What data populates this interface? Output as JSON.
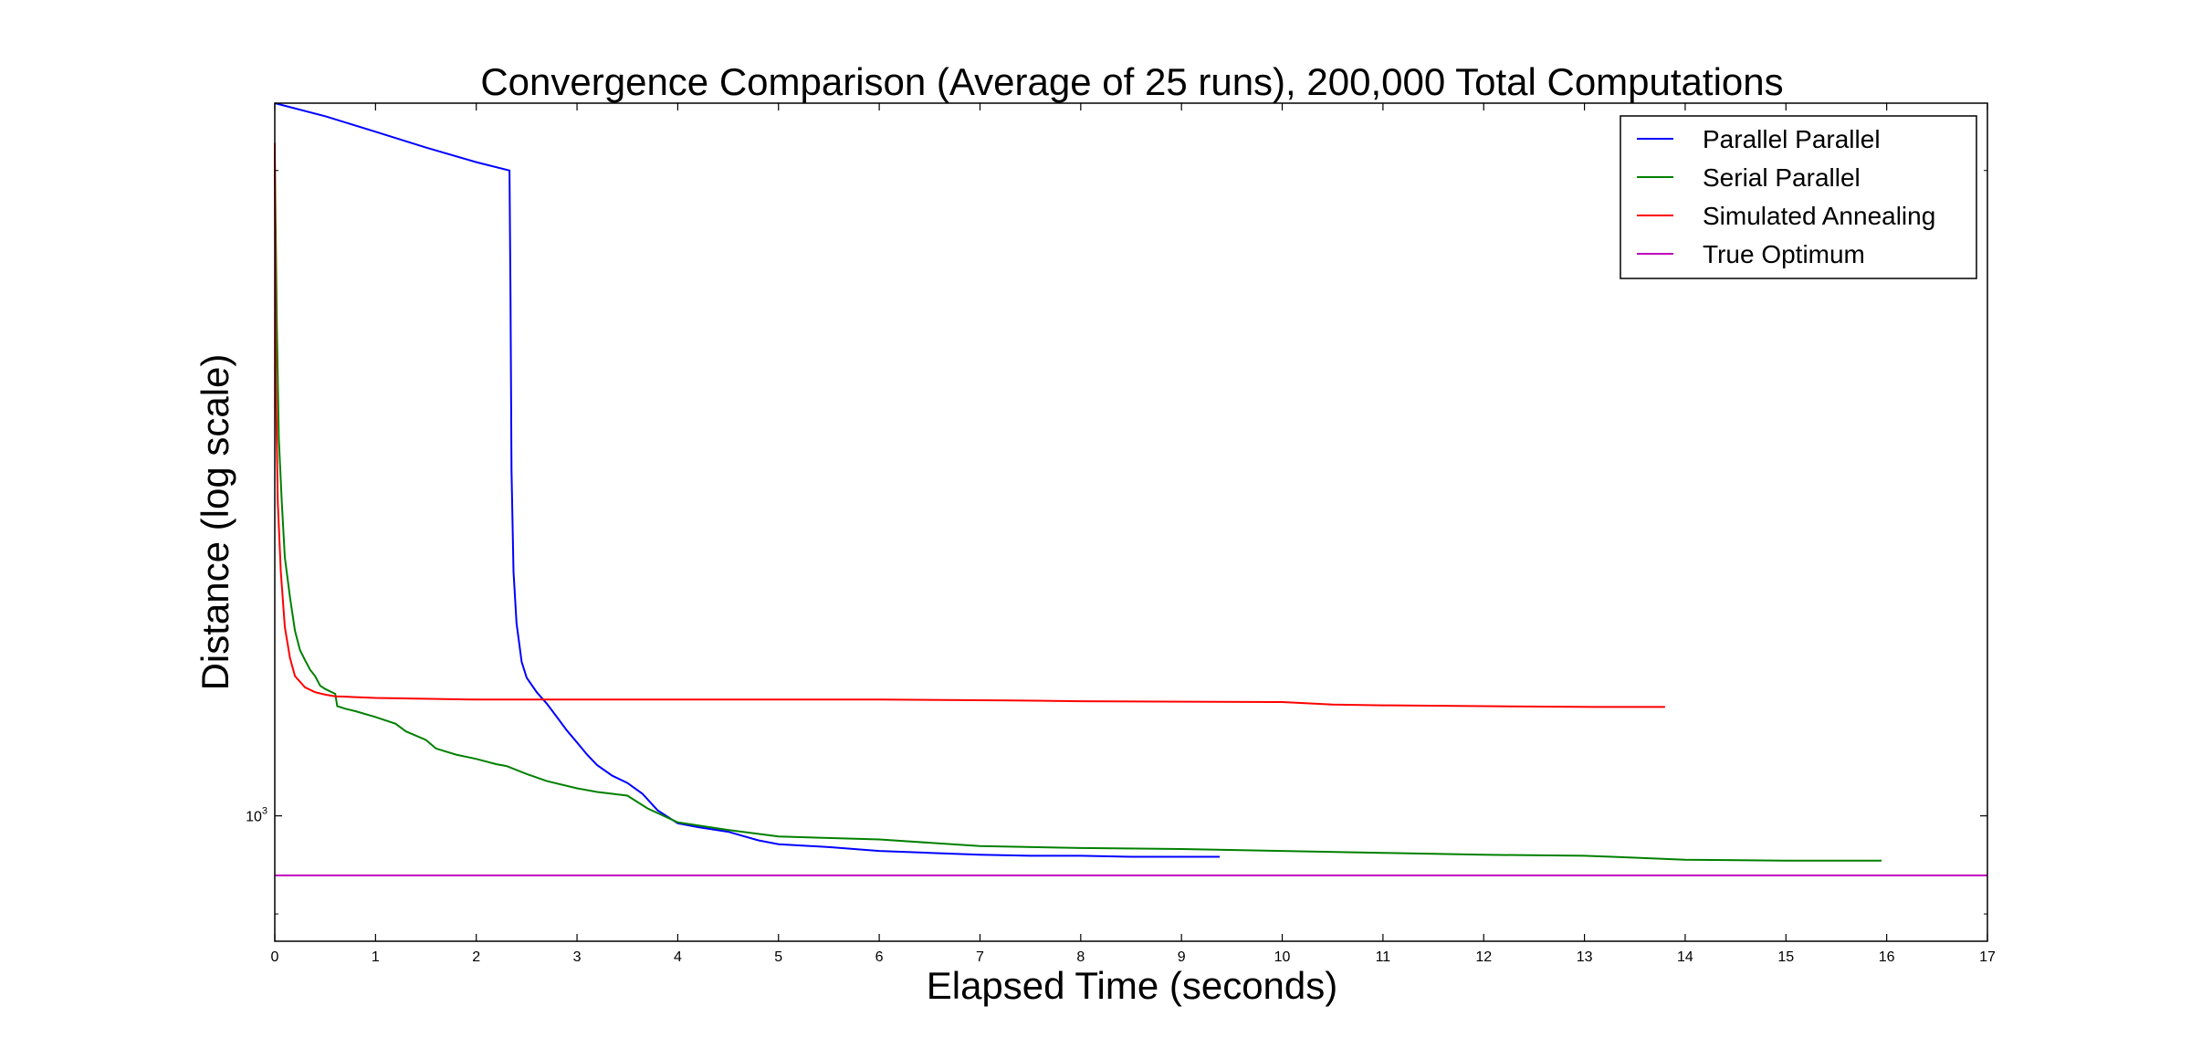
{
  "chart_data": {
    "type": "line",
    "title": "Convergence Comparison (Average of 25 runs), 200,000 Total Computations",
    "xlabel": "Elapsed Time (seconds)",
    "ylabel": "Distance (log scale)",
    "xlim": [
      0,
      17
    ],
    "ylim": [
      874,
      2150
    ],
    "yscale": "log",
    "x_ticks": [
      "0",
      "1",
      "2",
      "3",
      "4",
      "5",
      "6",
      "7",
      "8",
      "9",
      "10",
      "11",
      "12",
      "13",
      "14",
      "15",
      "16",
      "17"
    ],
    "y_tick": {
      "base": "10",
      "exponent": "3",
      "value": 1000
    },
    "grid": false,
    "legend_position": "top-right",
    "series": [
      {
        "name": "Parallel Parallel",
        "color": "#0000ff",
        "points": [
          [
            0,
            2150
          ],
          [
            0.5,
            2120
          ],
          [
            1.0,
            2085
          ],
          [
            1.5,
            2050
          ],
          [
            2.0,
            2018
          ],
          [
            2.33,
            2000
          ],
          [
            2.34,
            1750
          ],
          [
            2.35,
            1450
          ],
          [
            2.37,
            1300
          ],
          [
            2.4,
            1230
          ],
          [
            2.45,
            1180
          ],
          [
            2.5,
            1160
          ],
          [
            2.6,
            1142
          ],
          [
            2.7,
            1128
          ],
          [
            2.8,
            1112
          ],
          [
            2.9,
            1096
          ],
          [
            3.0,
            1082
          ],
          [
            3.1,
            1068
          ],
          [
            3.2,
            1056
          ],
          [
            3.35,
            1044
          ],
          [
            3.5,
            1036
          ],
          [
            3.65,
            1024
          ],
          [
            3.8,
            1006
          ],
          [
            4.0,
            992
          ],
          [
            4.2,
            988
          ],
          [
            4.5,
            983
          ],
          [
            4.8,
            974
          ],
          [
            5.0,
            970
          ],
          [
            5.5,
            967
          ],
          [
            6.0,
            963
          ],
          [
            6.5,
            961
          ],
          [
            7.0,
            959
          ],
          [
            7.5,
            958
          ],
          [
            8.0,
            958
          ],
          [
            8.5,
            957
          ],
          [
            9.0,
            957
          ],
          [
            9.38,
            957
          ]
        ]
      },
      {
        "name": "Serial Parallel",
        "color": "#008000",
        "points": [
          [
            0,
            2030
          ],
          [
            0.02,
            1700
          ],
          [
            0.04,
            1500
          ],
          [
            0.07,
            1400
          ],
          [
            0.1,
            1320
          ],
          [
            0.15,
            1265
          ],
          [
            0.2,
            1220
          ],
          [
            0.25,
            1195
          ],
          [
            0.3,
            1182
          ],
          [
            0.35,
            1170
          ],
          [
            0.4,
            1162
          ],
          [
            0.45,
            1150
          ],
          [
            0.5,
            1146
          ],
          [
            0.6,
            1140
          ],
          [
            0.62,
            1125
          ],
          [
            0.7,
            1122
          ],
          [
            0.8,
            1119
          ],
          [
            1.0,
            1112
          ],
          [
            1.2,
            1104
          ],
          [
            1.3,
            1095
          ],
          [
            1.5,
            1085
          ],
          [
            1.6,
            1075
          ],
          [
            1.8,
            1068
          ],
          [
            2.0,
            1063
          ],
          [
            2.2,
            1057
          ],
          [
            2.3,
            1055
          ],
          [
            2.5,
            1046
          ],
          [
            2.7,
            1038
          ],
          [
            3.0,
            1030
          ],
          [
            3.2,
            1026
          ],
          [
            3.5,
            1022
          ],
          [
            3.7,
            1008
          ],
          [
            4.0,
            993
          ],
          [
            4.5,
            985
          ],
          [
            5.0,
            978
          ],
          [
            6.0,
            975
          ],
          [
            7.0,
            968
          ],
          [
            8.0,
            966
          ],
          [
            9.0,
            965
          ],
          [
            10.0,
            963
          ],
          [
            11.0,
            961
          ],
          [
            12.0,
            959
          ],
          [
            13.0,
            958
          ],
          [
            13.5,
            956
          ],
          [
            14.0,
            954
          ],
          [
            15.0,
            953
          ],
          [
            15.95,
            953
          ]
        ]
      },
      {
        "name": "Simulated Annealing",
        "color": "#ff0000",
        "points": [
          [
            0,
            2060
          ],
          [
            0.01,
            1600
          ],
          [
            0.03,
            1400
          ],
          [
            0.06,
            1300
          ],
          [
            0.1,
            1225
          ],
          [
            0.15,
            1185
          ],
          [
            0.2,
            1162
          ],
          [
            0.3,
            1148
          ],
          [
            0.4,
            1142
          ],
          [
            0.5,
            1139
          ],
          [
            0.6,
            1137
          ],
          [
            0.8,
            1136
          ],
          [
            1.0,
            1135
          ],
          [
            2.0,
            1133
          ],
          [
            4.0,
            1133
          ],
          [
            6.0,
            1133
          ],
          [
            7.3,
            1132
          ],
          [
            8.0,
            1131
          ],
          [
            10.0,
            1130
          ],
          [
            10.5,
            1127
          ],
          [
            11.0,
            1126
          ],
          [
            12.0,
            1125
          ],
          [
            13.1,
            1124
          ],
          [
            13.8,
            1124
          ]
        ]
      },
      {
        "name": "True Optimum",
        "color": "#bf00bf",
        "points": [
          [
            0,
            938
          ],
          [
            17,
            938
          ]
        ]
      }
    ]
  }
}
